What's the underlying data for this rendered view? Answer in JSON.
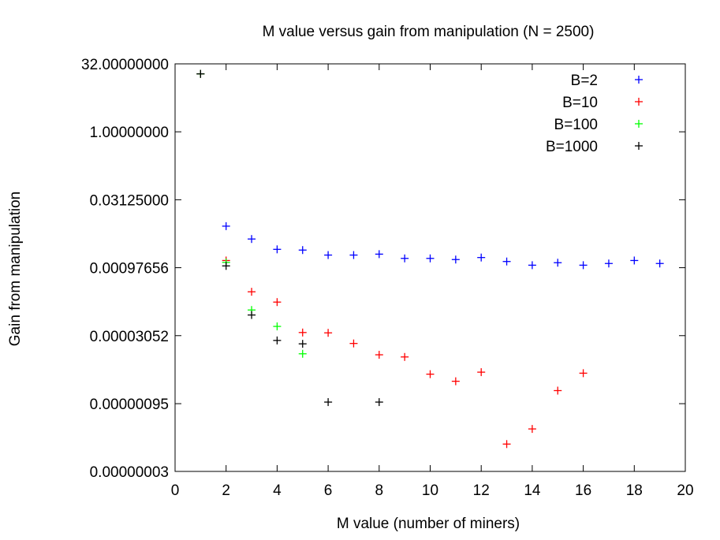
{
  "chart_data": {
    "type": "scatter",
    "title": "M value versus gain from manipulation (N = 2500)",
    "xlabel": "M value (number of miners)",
    "ylabel": "Gain from manipulation",
    "xlim": [
      0,
      20
    ],
    "ylim": [
      3e-08,
      32
    ],
    "yscale": "log",
    "xticks": [
      0,
      2,
      4,
      6,
      8,
      10,
      12,
      14,
      16,
      18,
      20
    ],
    "xtick_labels": [
      "0",
      "2",
      "4",
      "6",
      "8",
      "10",
      "12",
      "14",
      "16",
      "18",
      "20"
    ],
    "yticks": [
      32,
      1,
      0.03125,
      0.00097656,
      3.052e-05,
      9.5e-07,
      3e-08
    ],
    "ytick_labels": [
      "32.00000000",
      "1.00000000",
      "0.03125000",
      "0.00097656",
      "0.00003052",
      "0.00000095",
      "0.00000003"
    ],
    "legend_position": "top-right",
    "marker": "+",
    "series": [
      {
        "name": "B=2",
        "color": "#0000ff",
        "x": [
          1,
          2,
          3,
          4,
          5,
          6,
          7,
          8,
          9,
          10,
          11,
          12,
          13,
          14,
          15,
          16,
          17,
          18,
          19
        ],
        "y": [
          19.2,
          0.00813,
          0.00422,
          0.00249,
          0.0024,
          0.00186,
          0.00186,
          0.00195,
          0.00157,
          0.00157,
          0.00148,
          0.00164,
          0.00134,
          0.00111,
          0.00126,
          0.00111,
          0.00121,
          0.00141,
          0.00121
        ]
      },
      {
        "name": "B=10",
        "color": "#ff0000",
        "x": [
          1,
          2,
          3,
          4,
          5,
          6,
          7,
          8,
          9,
          10,
          11,
          12,
          13,
          14,
          15,
          16
        ],
        "y": [
          19.2,
          0.00141,
          0.000286,
          0.000169,
          3.58e-05,
          3.52e-05,
          2.05e-05,
          1.15e-05,
          1.03e-05,
          4.28e-06,
          2.98e-06,
          4.74e-06,
          1.21e-07,
          2.62e-07,
          1.85e-06,
          4.5e-06
        ]
      },
      {
        "name": "B=100",
        "color": "#00ff00",
        "x": [
          1,
          2,
          3,
          4,
          5
        ],
        "y": [
          19.2,
          0.00128,
          0.000113,
          4.89e-05,
          1.21e-05
        ]
      },
      {
        "name": "B=1000",
        "color": "#000000",
        "x": [
          1,
          2,
          3,
          4,
          5,
          6,
          8
        ],
        "y": [
          19.2,
          0.00107,
          8.75e-05,
          2.39e-05,
          2.01e-05,
          1.03e-06,
          1.03e-06
        ]
      }
    ]
  }
}
